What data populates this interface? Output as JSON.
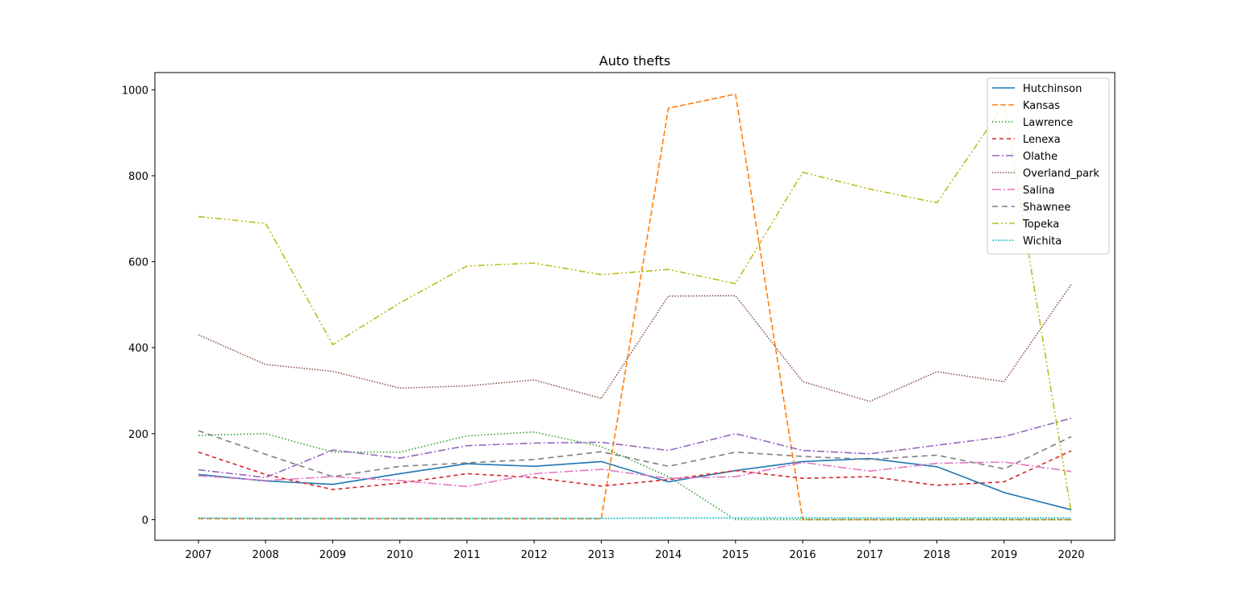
{
  "chart_data": {
    "type": "line",
    "title": "Auto thefts",
    "xlabel": "",
    "ylabel": "",
    "x": [
      "2007",
      "2008",
      "2009",
      "2010",
      "2011",
      "2012",
      "2013",
      "2014",
      "2015",
      "2016",
      "2017",
      "2018",
      "2019",
      "2020"
    ],
    "ylim": [
      -48,
      1040
    ],
    "yticks": [
      0,
      200,
      400,
      600,
      800,
      1000
    ],
    "grid": false,
    "legend_placement": "top-right",
    "series": [
      {
        "name": "Hutchinson",
        "color": "#1f77b4",
        "dash": "solid",
        "values": [
          105,
          90,
          82,
          107,
          130,
          124,
          135,
          88,
          114,
          135,
          142,
          123,
          63,
          23
        ]
      },
      {
        "name": "Kansas",
        "color": "#ff7f0e",
        "dash": "dashed",
        "values": [
          2,
          2,
          2,
          2,
          2,
          2,
          2,
          957,
          990,
          0,
          0,
          0,
          0,
          0
        ]
      },
      {
        "name": "Lawrence",
        "color": "#2ca02c",
        "dash": "dotted",
        "values": [
          196,
          200,
          157,
          157,
          195,
          204,
          170,
          100,
          0,
          0,
          0,
          0,
          0,
          0
        ]
      },
      {
        "name": "Lenexa",
        "color": "#d62728",
        "dash": "loosedash",
        "values": [
          157,
          105,
          70,
          85,
          107,
          98,
          78,
          93,
          114,
          96,
          100,
          80,
          88,
          160
        ]
      },
      {
        "name": "Olathe",
        "color": "#9467bd",
        "dash": "dashdot",
        "values": [
          116,
          98,
          162,
          143,
          172,
          178,
          180,
          161,
          200,
          161,
          153,
          173,
          193,
          236
        ]
      },
      {
        "name": "Overland_park",
        "color": "#8c564b",
        "dash": "densedot",
        "values": [
          430,
          361,
          345,
          306,
          311,
          325,
          282,
          520,
          521,
          321,
          275,
          344,
          321,
          547
        ]
      },
      {
        "name": "Salina",
        "color": "#e377c2",
        "dash": "longdashdot",
        "values": [
          102,
          91,
          100,
          91,
          77,
          107,
          117,
          96,
          100,
          133,
          113,
          131,
          134,
          112
        ]
      },
      {
        "name": "Shawnee",
        "color": "#7f7f7f",
        "dash": "longdash",
        "values": [
          207,
          152,
          100,
          124,
          132,
          140,
          158,
          124,
          157,
          147,
          140,
          150,
          118,
          193
        ]
      },
      {
        "name": "Topeka",
        "color": "#bcbd22",
        "dash": "dashdotdot",
        "values": [
          705,
          689,
          407,
          504,
          590,
          597,
          570,
          582,
          549,
          808,
          769,
          737,
          965,
          17
        ]
      },
      {
        "name": "Wichita",
        "color": "#17becf",
        "dash": "tightdot",
        "values": [
          4,
          3,
          3,
          3,
          3,
          3,
          3,
          4,
          4,
          4,
          4,
          4,
          4,
          4
        ]
      }
    ]
  }
}
